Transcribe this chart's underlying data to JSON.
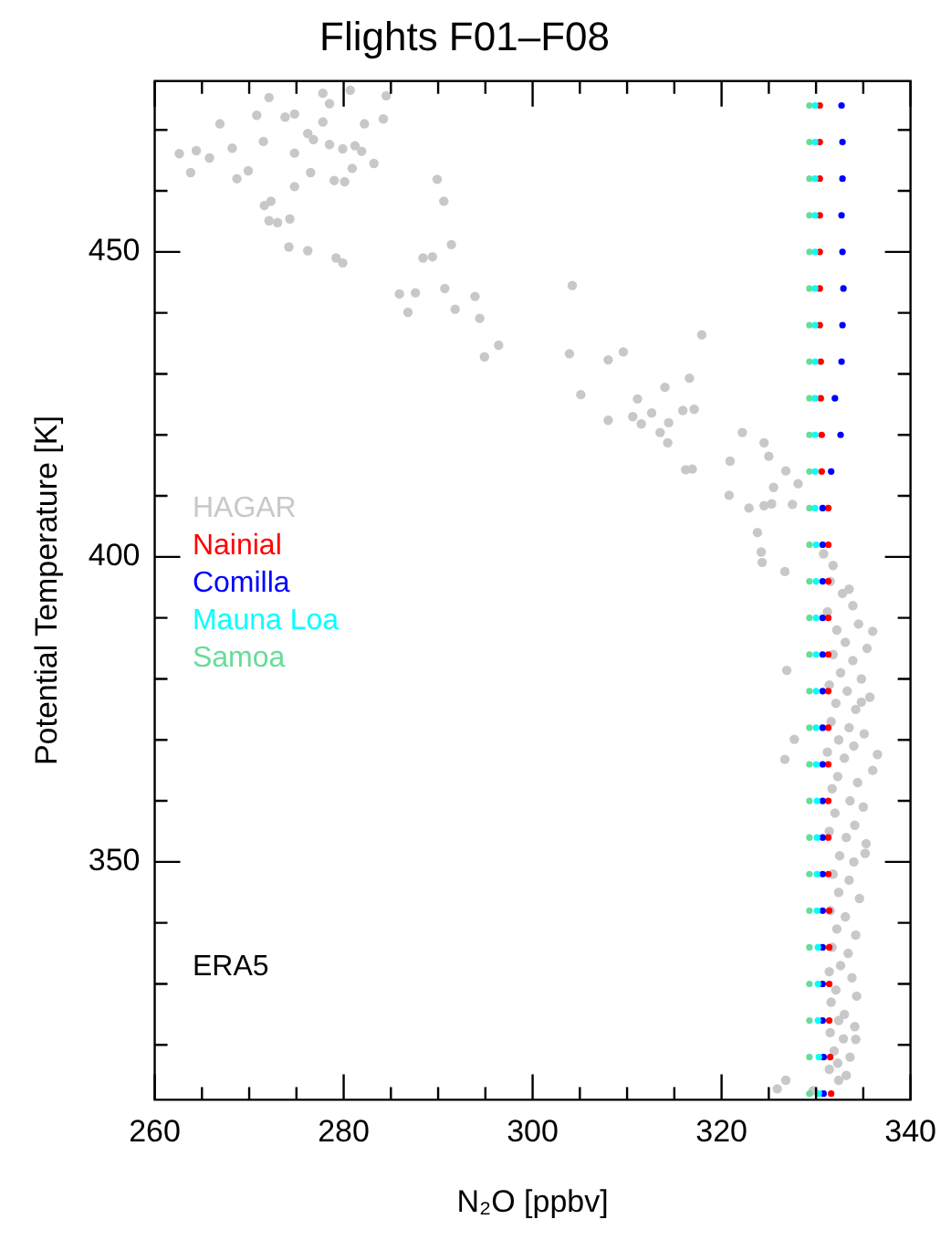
{
  "chart_data": {
    "type": "scatter",
    "title": "Flights F01–F08",
    "xlabel": "N₂O [ppbv]",
    "ylabel": "Potential Temperature [K]",
    "xlim": [
      260,
      340
    ],
    "ylim": [
      311,
      478
    ],
    "xticks": [
      260,
      {
        "value": 265,
        "label": null
      },
      {
        "value": 270,
        "label": null
      },
      {
        "value": 275,
        "label": null
      },
      280,
      {
        "value": 285,
        "label": null
      },
      {
        "value": 290,
        "label": null
      },
      {
        "value": 295,
        "label": null
      },
      300,
      {
        "value": 305,
        "label": null
      },
      {
        "value": 310,
        "label": null
      },
      {
        "value": 315,
        "label": null
      },
      320,
      {
        "value": 325,
        "label": null
      },
      {
        "value": 330,
        "label": null
      },
      {
        "value": 335,
        "label": null
      },
      340
    ],
    "yticks": [
      {
        "value": 320,
        "label": null
      },
      {
        "value": 330,
        "label": null
      },
      {
        "value": 340,
        "label": null
      },
      350,
      {
        "value": 360,
        "label": null
      },
      {
        "value": 370,
        "label": null
      },
      {
        "value": 380,
        "label": null
      },
      {
        "value": 390,
        "label": null
      },
      400,
      {
        "value": 410,
        "label": null
      },
      {
        "value": 420,
        "label": null
      },
      {
        "value": 430,
        "label": null
      },
      {
        "value": 440,
        "label": null
      },
      450,
      {
        "value": 460,
        "label": null
      },
      {
        "value": 470,
        "label": null
      }
    ],
    "grid": false,
    "legend": "left",
    "marker": "circle",
    "annotations": [
      "ERA5"
    ],
    "series": [
      {
        "name": "HAGAR",
        "color": "#c8c8c8",
        "x": [
          262.6,
          263.8,
          266.9,
          272.1,
          277.8,
          280.7,
          284.5,
          268.7,
          269.9,
          271.6,
          272.3,
          272.1,
          273,
          274.3,
          274.8,
          274.2,
          276.2,
          279.2,
          279.9,
          276.5,
          279,
          280.1,
          280.9,
          283.2,
          281.9,
          282.2,
          284.2,
          289.9,
          290.6,
          288.4,
          289.4,
          291.4,
          285.9,
          287.6,
          286.8,
          290.7,
          291.8,
          293.9,
          294.4,
          296.4,
          294.9,
          274.8,
          273.8,
          276.2,
          276.8,
          278.5,
          279.9,
          281.2,
          277.8,
          278.5,
          270.8,
          271.5,
          265.8,
          264.4,
          268.2,
          274.8,
          304.2,
          303.9,
          308,
          309.6,
          317.9,
          305.1,
          311.1,
          314,
          316.6,
          308,
          310.6,
          311.5,
          312.6,
          313.5,
          314.4,
          314.3,
          315.9,
          317.1,
          316.2,
          316.9,
          322.2,
          320.9,
          324.5,
          325,
          326.8,
          328.1,
          325.5,
          320.8,
          322.9,
          324.5,
          325.3,
          327.5,
          323.8,
          324.2,
          324.3,
          326.7,
          330.8,
          331.8,
          333.5,
          326.9,
          327.7,
          326.7,
          336.5,
          336,
          334.8,
          335.2,
          325.9,
          326.8,
          329.7,
          332.4,
          334.2,
          331.5,
          332.8,
          333.9,
          331.2,
          334.5,
          332.2,
          333.1,
          335.4,
          331.8,
          333.9,
          332.6,
          334.8,
          331.4,
          333.3,
          335.7,
          332.1,
          334.2,
          331.6,
          333.5,
          335.1,
          332.4,
          334,
          331.2,
          333,
          336,
          332.3,
          334.4,
          331.7,
          333.6,
          335,
          332,
          334.1,
          331.4,
          333.2,
          335.3,
          332.5,
          334,
          331.8,
          333.5,
          332.4,
          334.6,
          331.5,
          333.1,
          332.2,
          334.2,
          331.7,
          333.4,
          332.6,
          331.4,
          333.8,
          332.1,
          334.3,
          331.6,
          333,
          332.4,
          334.1,
          331.5,
          332.9,
          331.9,
          333.6,
          332.3,
          331.4,
          333.2
        ],
        "values": [
          466.1,
          463,
          471,
          475.3,
          476,
          476.5,
          475.6,
          462,
          463.3,
          457.6,
          458.3,
          455.1,
          454.8,
          455.4,
          460.7,
          450.8,
          450.2,
          449,
          448.2,
          463,
          461.7,
          461.5,
          463.7,
          464.5,
          466.5,
          471,
          471.8,
          461.9,
          458.3,
          449,
          449.2,
          451.2,
          443.1,
          443.3,
          440.1,
          444,
          440.6,
          442.7,
          439.1,
          434.7,
          432.8,
          472.6,
          472.1,
          469.4,
          468.4,
          467.6,
          466.9,
          467.4,
          471.3,
          474.3,
          472.4,
          468.1,
          465.4,
          466.6,
          467,
          466.2,
          444.5,
          433.3,
          432.3,
          433.6,
          436.4,
          426.6,
          425.9,
          427.8,
          429.3,
          422.4,
          423,
          421.8,
          423.6,
          420.4,
          422,
          418.7,
          424,
          424.2,
          414.3,
          414.4,
          420.4,
          415.7,
          418.7,
          416.5,
          414.1,
          412,
          411.4,
          410.1,
          408,
          408.4,
          408.7,
          408.6,
          404,
          400.8,
          399.1,
          397.6,
          400.5,
          398.6,
          394.7,
          381.4,
          370.1,
          366.8,
          367.6,
          387.8,
          376.2,
          351.4,
          312.8,
          314.2,
          312.5,
          314.2,
          320.9,
          396,
          394,
          392,
          391,
          389,
          388,
          386,
          385,
          384,
          383,
          381,
          380,
          379,
          378,
          377,
          376,
          375,
          373,
          372,
          371,
          370,
          369,
          368,
          367,
          365,
          364,
          363,
          362,
          360,
          359,
          358,
          356,
          355,
          354,
          353,
          351,
          350,
          348,
          347,
          345,
          344,
          342,
          341,
          339,
          338,
          336,
          335,
          333,
          332,
          331,
          329,
          328,
          327,
          325,
          324,
          323,
          322,
          321,
          319,
          318,
          317,
          316,
          315
        ]
      },
      {
        "name": "Nainial",
        "color": "#ff0000",
        "x": [
          331.6,
          331.5,
          331.4,
          331.4,
          331.4,
          331.4,
          331.3,
          331.3,
          331.3,
          331.3,
          331.3,
          331.3,
          331.3,
          331.3,
          331.3,
          331.3,
          331.3,
          330.6,
          330.6,
          330.5,
          330.5,
          330.4,
          330.4,
          330.4,
          330.4,
          330.4,
          330.4,
          330.4
        ],
        "values": [
          312,
          318,
          324,
          330,
          336,
          342,
          348,
          354,
          360,
          366,
          372,
          378,
          384,
          390,
          396,
          402,
          408,
          414,
          420,
          426,
          432,
          438,
          444,
          450,
          456,
          462,
          468,
          474
        ]
      },
      {
        "name": "Comilla",
        "color": "#0000ff",
        "x": [
          330.8,
          330.8,
          330.7,
          330.7,
          330.7,
          330.7,
          330.7,
          330.7,
          330.7,
          330.7,
          330.7,
          330.7,
          330.7,
          330.7,
          330.7,
          330.7,
          330.7,
          331.6,
          332.6,
          332.0,
          332.7,
          332.8,
          332.9,
          332.8,
          332.7,
          332.8,
          332.8,
          332.7
        ],
        "values": [
          312,
          318,
          324,
          330,
          336,
          342,
          348,
          354,
          360,
          366,
          372,
          378,
          384,
          390,
          396,
          402,
          408,
          414,
          420,
          426,
          432,
          438,
          444,
          450,
          456,
          462,
          468,
          474
        ]
      },
      {
        "name": "Mauna Loa",
        "color": "#00ffff",
        "x": [
          330.3,
          330.3,
          330.2,
          330.2,
          330.2,
          330.1,
          330.1,
          330.1,
          330.1,
          330.0,
          330.0,
          330.0,
          330.0,
          330.0,
          330.0,
          330.0,
          329.9,
          329.9,
          329.9,
          329.9,
          329.9,
          329.9,
          329.9,
          329.9,
          329.9,
          329.9,
          329.9,
          329.9
        ],
        "values": [
          312,
          318,
          324,
          330,
          336,
          342,
          348,
          354,
          360,
          366,
          372,
          378,
          384,
          390,
          396,
          402,
          408,
          414,
          420,
          426,
          432,
          438,
          444,
          450,
          456,
          462,
          468,
          474
        ]
      },
      {
        "name": "Samoa",
        "color": "#66dd99",
        "x": [
          329.3,
          329.3,
          329.3,
          329.3,
          329.3,
          329.3,
          329.3,
          329.3,
          329.3,
          329.3,
          329.3,
          329.3,
          329.3,
          329.3,
          329.3,
          329.3,
          329.3,
          329.3,
          329.3,
          329.3,
          329.3,
          329.3,
          329.3,
          329.3,
          329.3,
          329.3,
          329.3,
          329.3
        ],
        "values": [
          312,
          318,
          324,
          330,
          336,
          342,
          348,
          354,
          360,
          366,
          372,
          378,
          384,
          390,
          396,
          402,
          408,
          414,
          420,
          426,
          432,
          438,
          444,
          450,
          456,
          462,
          468,
          474
        ]
      }
    ]
  }
}
